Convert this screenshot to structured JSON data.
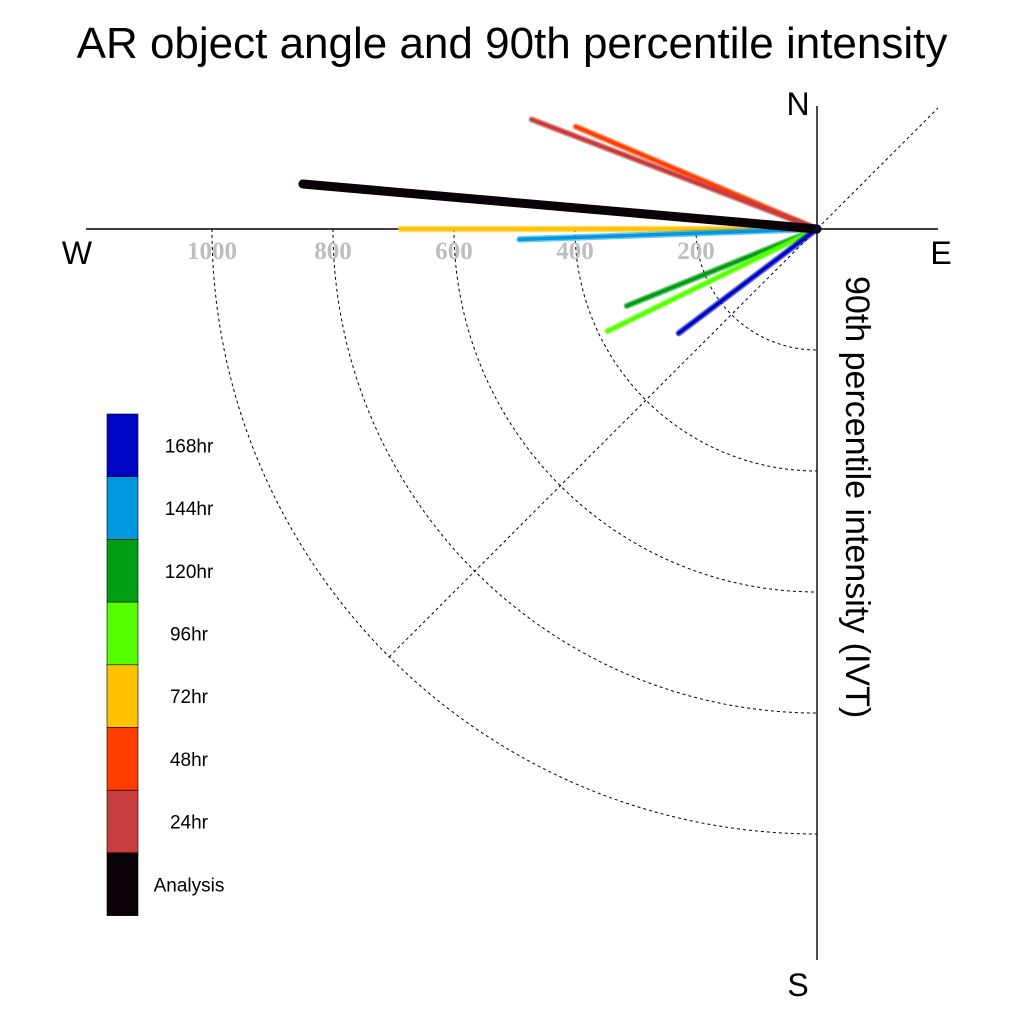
{
  "chart_data": {
    "type": "polar-vector",
    "title": "AR object angle and 90th percentile intensity",
    "radial_label": "90th percentile intensity (IVT)",
    "compass": {
      "north": "N",
      "east": "E",
      "south": "S",
      "west": "W"
    },
    "radial_ticks": [
      200,
      400,
      600,
      800,
      1000
    ],
    "rings": [
      200,
      400,
      600,
      800,
      1000
    ],
    "grid": true,
    "legend_placement": "left",
    "series": [
      {
        "name": "Analysis",
        "color": "#0a0008",
        "angle_deg": 275,
        "intensity": 853
      },
      {
        "name": "24hr",
        "color": "#c73c3c",
        "angle_deg": 291,
        "intensity": 505
      },
      {
        "name": "48hr",
        "color": "#ff3f00",
        "angle_deg": 293,
        "intensity": 433
      },
      {
        "name": "72hr",
        "color": "#ffc100",
        "angle_deg": 270,
        "intensity": 688
      },
      {
        "name": "96hr",
        "color": "#55ff00",
        "angle_deg": 244,
        "intensity": 385
      },
      {
        "name": "120hr",
        "color": "#009e15",
        "angle_deg": 248,
        "intensity": 339
      },
      {
        "name": "144hr",
        "color": "#0098de",
        "angle_deg": 268,
        "intensity": 492
      },
      {
        "name": "168hr",
        "color": "#0005c4",
        "angle_deg": 233,
        "intensity": 286
      }
    ],
    "legend_order": [
      "168hr",
      "144hr",
      "120hr",
      "96hr",
      "72hr",
      "48hr",
      "24hr",
      "Analysis"
    ]
  }
}
